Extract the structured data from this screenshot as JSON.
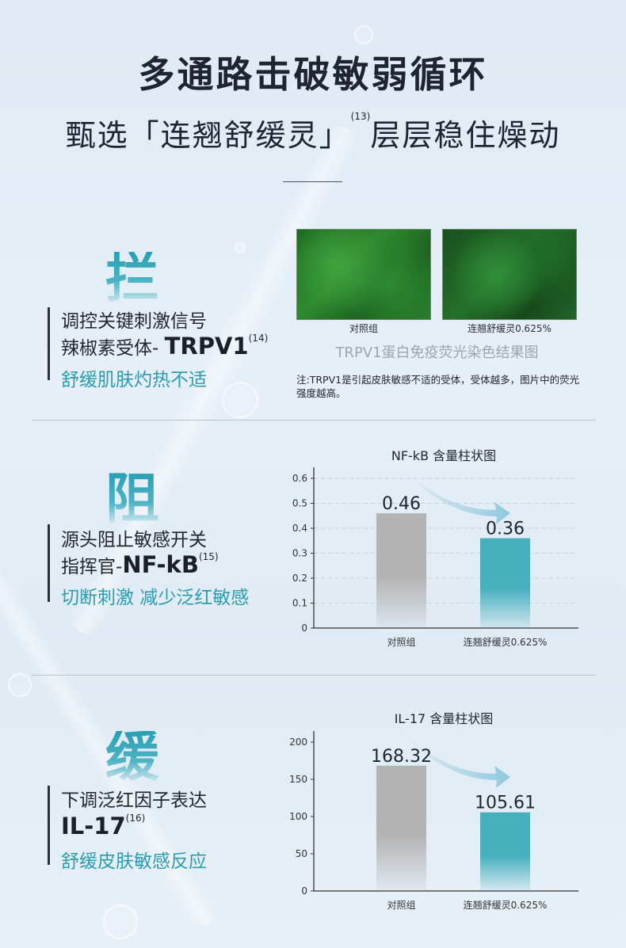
{
  "header": {
    "title": "多通路击破敏弱循环",
    "subtitle_pre": "甄选「连翘舒缓灵」",
    "subtitle_ref": "(13)",
    "subtitle_post": "层层稳住燥动"
  },
  "sections": [
    {
      "char": "拦",
      "line1": "调控关键刺激信号",
      "line2_pre": "辣椒素受体- ",
      "line2_bold": "TRPV1",
      "ref": "(14)",
      "line3": "舒缓肌肤灼热不适"
    },
    {
      "char": "阻",
      "line1": "源头阻止敏感开关",
      "line2_pre": "指挥官-",
      "line2_bold": "NF-kB",
      "ref": "(15)",
      "line3": "切断刺激 减少泛红敏感"
    },
    {
      "char": "缓",
      "line1": "下调泛红因子表达",
      "line2_pre": "",
      "line2_bold": "IL-17",
      "ref": "(16)",
      "line3": "舒缓皮肤敏感反应"
    }
  ],
  "fluorescence": {
    "labels": [
      "对照组",
      "连翘舒缓灵0.625%"
    ],
    "caption": "TRPV1蛋白免疫荧光染色结果图",
    "note": "注:TRPV1是引起皮肤敏感不适的受体，受体越多，图片中的荧光强度越高。"
  },
  "colors": {
    "accent": "#2b9cb0",
    "control_bar": "#b3b3b3",
    "treatment_bar": "#46b0bf"
  },
  "chart_data": [
    {
      "type": "bar",
      "title": "NF-kB 含量柱状图",
      "categories": [
        "对照组",
        "连翘舒缓灵0.625%"
      ],
      "values": [
        0.46,
        0.36
      ],
      "value_labels": [
        "0.46",
        "0.36"
      ],
      "ylim": [
        0,
        0.6
      ],
      "yticks": [
        "0",
        "0.1",
        "0.2",
        "0.3",
        "0.4",
        "0.5",
        "0.6"
      ],
      "ytick_values": [
        0,
        0.1,
        0.2,
        0.3,
        0.4,
        0.5,
        0.6
      ],
      "grid": true,
      "xlabel": "",
      "ylabel": ""
    },
    {
      "type": "bar",
      "title": "IL-17 含量柱状图",
      "categories": [
        "对照组",
        "连翘舒缓灵0.625%"
      ],
      "values": [
        168.32,
        105.61
      ],
      "value_labels": [
        "168.32",
        "105.61"
      ],
      "ylim": [
        0,
        200
      ],
      "yticks": [
        "0",
        "50",
        "100",
        "150",
        "200"
      ],
      "ytick_values": [
        0,
        50,
        100,
        150,
        200
      ],
      "grid": false,
      "xlabel": "",
      "ylabel": ""
    }
  ]
}
